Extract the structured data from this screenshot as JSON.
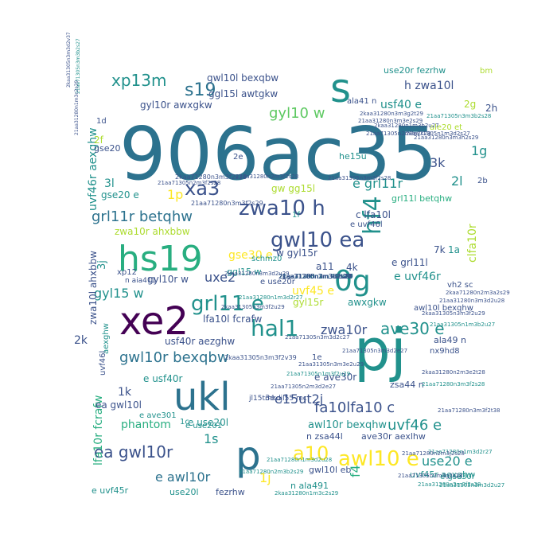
{
  "palette": {
    "darkpurple": "#440154",
    "indigo": "#3b528b",
    "blue": "#2c728e",
    "teal": "#21918c",
    "green": "#28ae80",
    "lightgreen": "#5ec962",
    "lime": "#addc30",
    "yellow": "#fde725"
  },
  "words": [
    {
      "text": "906ac35",
      "color": "blue"
    },
    {
      "text": "ukl",
      "color": "blue"
    },
    {
      "text": "pj",
      "color": "teal"
    },
    {
      "text": "p",
      "color": "blue"
    },
    {
      "text": "xe2",
      "color": "darkpurple"
    },
    {
      "text": "hs19",
      "color": "green"
    },
    {
      "text": "s",
      "color": "teal"
    },
    {
      "text": "0g",
      "color": "teal"
    },
    {
      "text": "hal1",
      "color": "teal"
    },
    {
      "text": "gwl10 ea",
      "color": "indigo"
    },
    {
      "text": "zwa10 h",
      "color": "indigo"
    },
    {
      "text": "grl11 e",
      "color": "teal"
    },
    {
      "text": "hf4",
      "color": "teal"
    },
    {
      "text": "xa3",
      "color": "indigo"
    },
    {
      "text": "s19",
      "color": "blue"
    },
    {
      "text": "xp13m",
      "color": "teal"
    },
    {
      "text": "awl10 e",
      "color": "yellow"
    },
    {
      "text": "a10",
      "color": "yellow"
    },
    {
      "text": "ea gwl10r",
      "color": "indigo"
    },
    {
      "text": "gwl10r bexqbw",
      "color": "blue"
    },
    {
      "text": "fa10lfa10 c",
      "color": "indigo"
    },
    {
      "text": "grl11r betqhw",
      "color": "blue"
    },
    {
      "text": "gyl10 w",
      "color": "lightgreen"
    },
    {
      "text": "uvf46 e",
      "color": "teal"
    },
    {
      "text": "ave30 e",
      "color": "teal"
    },
    {
      "text": "e awl10r",
      "color": "blue"
    },
    {
      "text": "1p",
      "color": "yellow"
    },
    {
      "text": "1s",
      "color": "teal"
    },
    {
      "text": "3k",
      "color": "indigo"
    },
    {
      "text": "2l",
      "color": "teal"
    },
    {
      "text": "1g",
      "color": "teal"
    },
    {
      "text": "1j",
      "color": "yellow"
    },
    {
      "text": "zwa10r",
      "color": "indigo"
    },
    {
      "text": "e15ut2j",
      "color": "indigo"
    },
    {
      "text": "uxe2",
      "color": "indigo"
    },
    {
      "text": "gyl15 w",
      "color": "teal"
    },
    {
      "text": "phantom",
      "color": "green"
    },
    {
      "text": "use20 e",
      "color": "teal"
    },
    {
      "text": "uvf46r aexghw",
      "color": "teal"
    },
    {
      "text": "lfa10r fcrafw",
      "color": "green"
    },
    {
      "text": "clfa10r",
      "color": "lime"
    },
    {
      "text": "f4",
      "color": "green"
    },
    {
      "text": "e grl11r",
      "color": "teal"
    },
    {
      "text": "h zwa10l",
      "color": "indigo"
    },
    {
      "text": "usf40 e",
      "color": "teal"
    },
    {
      "text": "gwl10l bexqbw",
      "color": "indigo"
    },
    {
      "text": "gyl10r awxgkw",
      "color": "indigo"
    },
    {
      "text": "ggl15l awtgkw",
      "color": "indigo"
    },
    {
      "text": "use20r fezrhw",
      "color": "teal"
    },
    {
      "text": "awl10r bexqhw",
      "color": "teal"
    },
    {
      "text": "awl10l bexqhw",
      "color": "indigo"
    },
    {
      "text": "zwa10r ahxbbw",
      "color": "lime"
    },
    {
      "text": "gse30 e",
      "color": "yellow"
    },
    {
      "text": "ggl15 w",
      "color": "teal"
    },
    {
      "text": "lfa10l fcrafw",
      "color": "indigo"
    },
    {
      "text": "gyl15r",
      "color": "lime"
    },
    {
      "text": "uvf45 e",
      "color": "yellow"
    },
    {
      "text": "awxgkw",
      "color": "teal"
    },
    {
      "text": "usf40r aezghw",
      "color": "indigo"
    },
    {
      "text": "e use20l",
      "color": "teal"
    },
    {
      "text": "e usf40r",
      "color": "teal"
    },
    {
      "text": "n zsa44l",
      "color": "indigo"
    },
    {
      "text": "ave30r aexlhw",
      "color": "indigo"
    },
    {
      "text": "uvf45r aexghw",
      "color": "teal"
    },
    {
      "text": "e uvf45r",
      "color": "teal"
    },
    {
      "text": "use20l",
      "color": "teal"
    },
    {
      "text": "fezrhw",
      "color": "indigo"
    },
    {
      "text": "gse20 e",
      "color": "teal"
    },
    {
      "text": "gyl10r w",
      "color": "indigo"
    },
    {
      "text": "c lfa10l",
      "color": "indigo"
    },
    {
      "text": "e uvf46l",
      "color": "indigo"
    },
    {
      "text": "w gyl15r",
      "color": "indigo"
    },
    {
      "text": "e uvf46r",
      "color": "teal"
    },
    {
      "text": "e grl11l",
      "color": "indigo"
    },
    {
      "text": "gw gg15l",
      "color": "lime"
    },
    {
      "text": "grl11l betqhw",
      "color": "green"
    },
    {
      "text": "e ave30r",
      "color": "indigo"
    },
    {
      "text": "e ave301",
      "color": "teal"
    },
    {
      "text": "e use201",
      "color": "teal"
    },
    {
      "text": "ea gwl10l",
      "color": "indigo"
    },
    {
      "text": "zwa10l ahxbbw",
      "color": "indigo"
    },
    {
      "text": "aexghw",
      "color": "teal"
    },
    {
      "text": "uvf46l",
      "color": "indigo"
    },
    {
      "text": "1k",
      "color": "indigo"
    },
    {
      "text": "2k",
      "color": "indigo"
    },
    {
      "text": "3j",
      "color": "teal"
    },
    {
      "text": "3l",
      "color": "teal"
    },
    {
      "text": "2f",
      "color": "lime"
    },
    {
      "text": "1d",
      "color": "indigo"
    },
    {
      "text": "1f",
      "color": "teal"
    },
    {
      "text": "2e",
      "color": "indigo"
    },
    {
      "text": "3e",
      "color": "indigo"
    },
    {
      "text": "1c",
      "color": "teal"
    },
    {
      "text": "1e",
      "color": "indigo"
    },
    {
      "text": "2h",
      "color": "indigo"
    },
    {
      "text": "2g",
      "color": "lime"
    },
    {
      "text": "2b",
      "color": "indigo"
    },
    {
      "text": "4k",
      "color": "indigo"
    },
    {
      "text": "1a",
      "color": "teal"
    },
    {
      "text": "7k",
      "color": "indigo"
    },
    {
      "text": "a11",
      "color": "indigo"
    },
    {
      "text": "he15u",
      "color": "teal"
    },
    {
      "text": "schmz0",
      "color": "teal"
    },
    {
      "text": "xp12",
      "color": "indigo"
    },
    {
      "text": "n aia411",
      "color": "indigo"
    },
    {
      "text": "n ala491",
      "color": "teal"
    },
    {
      "text": "ala49 n",
      "color": "indigo"
    },
    {
      "text": "nx9hd8",
      "color": "indigo"
    },
    {
      "text": "vh2 sc",
      "color": "indigo"
    },
    {
      "text": "zsa44 n",
      "color": "indigo"
    },
    {
      "text": "gwl10l eb",
      "color": "indigo"
    },
    {
      "text": "e gse30r",
      "color": "teal"
    },
    {
      "text": "ale20 et",
      "color": "lime"
    },
    {
      "text": "ala41 n",
      "color": "indigo"
    },
    {
      "text": "jl15tmkdjl55 mc",
      "color": "indigo"
    },
    {
      "text": "e use20r",
      "color": "indigo"
    },
    {
      "text": "gse20",
      "color": "indigo"
    },
    {
      "text": "bm",
      "color": "lime"
    },
    {
      "text": "21aa71305n3m3d2e27",
      "color": "indigo"
    },
    {
      "text": "2kaa71280n3m3f2s28",
      "color": "indigo"
    },
    {
      "text": "21aa71280n3m3f2s29",
      "color": "indigo"
    },
    {
      "text": "2kaa31305n3m3f2u29",
      "color": "indigo"
    },
    {
      "text": "21aa71280n1m3d2u28",
      "color": "teal"
    },
    {
      "text": "2kaa31280n1m3c2s29",
      "color": "teal"
    },
    {
      "text": "21aa71305n3m3d2c27",
      "color": "indigo"
    },
    {
      "text": "2kaa31305n3m3f2v39",
      "color": "indigo"
    },
    {
      "text": "21aa71305n2m3f2s28",
      "color": "indigo"
    },
    {
      "text": "21aa31280n2m3f2s28",
      "color": "indigo"
    },
    {
      "text": "21aa31305n3m3f2s28",
      "color": "indigo"
    },
    {
      "text": "2kaa31305n3m3f2u29",
      "color": "indigo"
    },
    {
      "text": "21aa71280n3m3f2t38",
      "color": "indigo"
    },
    {
      "text": "21aa31280n2m3f2s28",
      "color": "teal"
    },
    {
      "text": "2kaa31305n3m3d2v37",
      "color": "indigo"
    },
    {
      "text": "21aa31280n1m3c2s29",
      "color": "indigo"
    },
    {
      "text": "21aa71305n3m3b2s27",
      "color": "teal"
    },
    {
      "text": "21aa31280n3m3e2s29",
      "color": "indigo"
    },
    {
      "text": "2kaa31280n3m3g2t29",
      "color": "indigo"
    },
    {
      "text": "21aa71305n3m3b2s28",
      "color": "teal"
    },
    {
      "text": "21aa31280n3m3d2u28",
      "color": "indigo"
    },
    {
      "text": "21aa71280n1m3d2r27",
      "color": "teal"
    },
    {
      "text": "21aa31305n1m3b2u27",
      "color": "teal"
    },
    {
      "text": "2kaa31280n3m3d2u29",
      "color": "indigo"
    },
    {
      "text": "21aa71305n2m3d2e27",
      "color": "indigo"
    },
    {
      "text": "2kaa71305n1m3d2s27",
      "color": "indigo"
    },
    {
      "text": "21aa31280n3m3h2s29",
      "color": "indigo"
    },
    {
      "text": "21aa31305n3m3e2u29",
      "color": "indigo"
    },
    {
      "text": "2kaa71280n2m3a2s29",
      "color": "indigo"
    },
    {
      "text": "21aa71305n2m3e2s28",
      "color": "indigo"
    },
    {
      "text": "21aa71280n3m3f2s28",
      "color": "teal"
    },
    {
      "text": "2kaa31280n2m3e2t28",
      "color": "indigo"
    },
    {
      "text": "21aa71305n2m3g2s28",
      "color": "indigo"
    },
    {
      "text": "21aa71280n2m3j2s28",
      "color": "indigo"
    },
    {
      "text": "2kaa31280n1m3b2u27",
      "color": "indigo"
    },
    {
      "text": "21aa71305n1m3f2u29",
      "color": "teal"
    },
    {
      "text": "21aa31280n1m3d2r27",
      "color": "teal"
    },
    {
      "text": "21aa31305n3m3d2u27",
      "color": "teal"
    },
    {
      "text": "21aa71280n2m3b2s29",
      "color": "teal"
    },
    {
      "text": "21aa71305n2m3d2u27",
      "color": "teal"
    },
    {
      "text": "2kaa71280n3m3e2s29",
      "color": "indigo"
    },
    {
      "text": "2kaa31280n2m3e2t28",
      "color": "indigo"
    },
    {
      "text": "21aa71305n3m3e2s27",
      "color": "teal"
    },
    {
      "text": "21aa71305n1m3d2t27",
      "color": "teal"
    },
    {
      "text": "21aa31305n2m3c2u29",
      "color": "teal"
    },
    {
      "text": "21aa71280n1m3b2s28",
      "color": "teal"
    },
    {
      "text": "21aa71305n1m3b2s27",
      "color": "teal"
    },
    {
      "text": "2kaa31305n3m3d2s29",
      "color": "teal"
    },
    {
      "text": "21aa71305n1m3d2s28",
      "color": "teal"
    },
    {
      "text": "21aa31280n3m3d2u29",
      "color": "indigo"
    },
    {
      "text": "21aa31305n2m3d2s28",
      "color": "teal"
    },
    {
      "text": "2kaa31280n3m3b2s29",
      "color": "teal"
    },
    {
      "text": "2kaa71280n3m3c2s29",
      "color": "indigo"
    },
    {
      "text": "21aa71280n2m3c2u28",
      "color": "teal"
    },
    {
      "text": "2kaa71305n3m3d2s27",
      "color": "indigo"
    },
    {
      "text": "21aa31305n3m3e2s28",
      "color": "indigo"
    },
    {
      "text": "2kaa31280n3m3f2u27",
      "color": "indigo"
    }
  ]
}
